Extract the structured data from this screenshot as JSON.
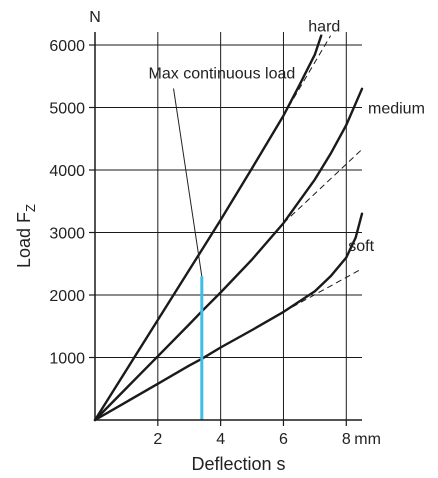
{
  "chart_data": {
    "type": "line",
    "title": "",
    "xlabel": "Deflection s",
    "ylabel": "Load F",
    "ylabel_sub": "Z",
    "x_unit": "mm",
    "y_unit": "N",
    "xlim": [
      0,
      8.5
    ],
    "ylim": [
      0,
      6000
    ],
    "x_ticks": [
      2,
      4,
      6,
      8
    ],
    "x_tick_labels": [
      "2",
      "4",
      "6",
      "8"
    ],
    "y_ticks": [
      1000,
      2000,
      3000,
      4000,
      5000,
      6000
    ],
    "y_tick_labels": [
      "1000",
      "2000",
      "3000",
      "4000",
      "5000",
      "6000"
    ],
    "grid": true,
    "series": [
      {
        "name": "hard",
        "x": [
          0,
          1,
          2,
          3,
          3.4,
          4,
          5,
          6,
          6.5,
          7,
          7.2
        ],
        "y": [
          0,
          800,
          1600,
          2400,
          2720,
          3200,
          4030,
          4870,
          5350,
          5850,
          6150
        ],
        "color": "#1a1a1a",
        "linear_extension": {
          "x": [
            6,
            7.5
          ],
          "y": [
            4870,
            6150
          ]
        }
      },
      {
        "name": "medium",
        "x": [
          0,
          1,
          2,
          3,
          3.4,
          4,
          5,
          6,
          7,
          7.5,
          8,
          8.5
        ],
        "y": [
          0,
          510,
          1020,
          1530,
          1740,
          2040,
          2570,
          3150,
          3850,
          4260,
          4720,
          5300
        ],
        "color": "#1a1a1a",
        "linear_extension": {
          "x": [
            6,
            8.5
          ],
          "y": [
            3150,
            4330
          ]
        }
      },
      {
        "name": "soft",
        "x": [
          0,
          1,
          2,
          3,
          3.4,
          4,
          5,
          6,
          7,
          7.5,
          8,
          8.3,
          8.5
        ],
        "y": [
          0,
          290,
          580,
          870,
          980,
          1160,
          1440,
          1730,
          2060,
          2300,
          2600,
          2920,
          3300
        ],
        "color": "#1a1a1a",
        "linear_extension": {
          "x": [
            6,
            8.5
          ],
          "y": [
            1730,
            2420
          ]
        }
      }
    ],
    "annotations": [
      {
        "text": "Max continuous load",
        "color": "#3fbde6",
        "x": 3.4,
        "y_range": [
          0,
          2300
        ],
        "label_anchor": [
          2.5,
          5400
        ]
      }
    ]
  }
}
